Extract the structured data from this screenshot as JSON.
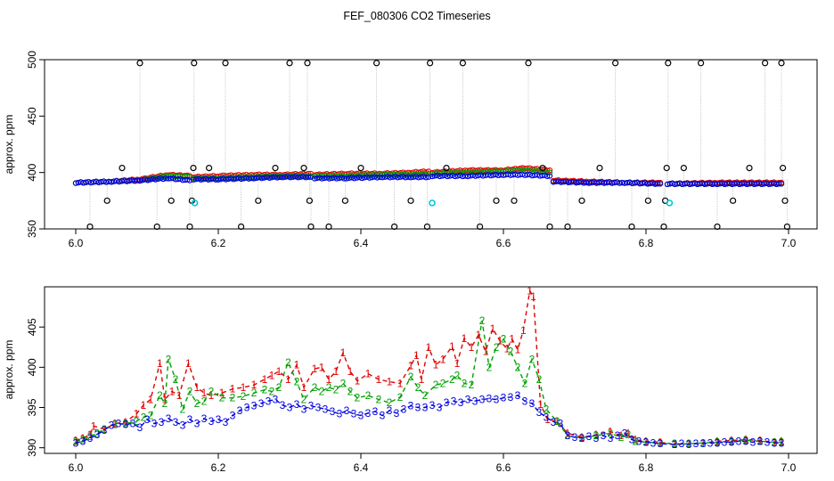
{
  "title": "FEF_080306  CO2 Timeseries",
  "colors": {
    "series1": "#e00000",
    "series2": "#00a000",
    "series3": "#0000e0",
    "outlier": "#000000",
    "flag": "#00c8d8",
    "connector": "#b0b0b0"
  },
  "chart_data": [
    {
      "type": "scatter",
      "panel": "top",
      "title": "FEF_080306  CO2 Timeseries",
      "xlabel": "",
      "ylabel": "approx. ppm",
      "xlim": [
        6.0,
        7.0
      ],
      "ylim": [
        350,
        500
      ],
      "x_ticks": [
        "6.0",
        "6.2",
        "6.4",
        "6.6",
        "6.8",
        "7.0"
      ],
      "y_ticks": [
        "350",
        "400",
        "450",
        "500"
      ],
      "baseline_segments": [
        {
          "x": [
            6.0,
            6.05,
            6.09,
            6.13,
            6.16
          ],
          "series3": [
            391,
            392,
            393,
            395,
            393
          ],
          "series1": [
            391,
            392,
            394,
            398,
            397
          ],
          "series2": [
            391,
            392,
            393,
            397,
            396
          ]
        },
        {
          "x": [
            6.165,
            6.2,
            6.25,
            6.29,
            6.33
          ],
          "series3": [
            394,
            394,
            395,
            396,
            396
          ],
          "series1": [
            396,
            397,
            398,
            398,
            399
          ],
          "series2": [
            395,
            395,
            396,
            397,
            397
          ]
        },
        {
          "x": [
            6.335,
            6.38,
            6.43,
            6.47,
            6.495
          ],
          "series3": [
            395,
            395,
            396,
            396,
            396
          ],
          "series1": [
            398,
            399,
            399,
            400,
            401
          ],
          "series2": [
            397,
            397,
            398,
            398,
            399
          ]
        },
        {
          "x": [
            6.5,
            6.55,
            6.6,
            6.63,
            6.665
          ],
          "series3": [
            397,
            397,
            398,
            398,
            397
          ],
          "series1": [
            400,
            402,
            402,
            404,
            402
          ],
          "series2": [
            399,
            400,
            401,
            402,
            400
          ]
        },
        {
          "x": [
            6.67,
            6.72,
            6.77,
            6.82
          ],
          "series3": [
            392,
            391,
            391,
            390
          ],
          "series1": [
            393,
            392,
            391,
            391
          ],
          "series2": [
            392,
            391,
            391,
            390
          ]
        },
        {
          "x": [
            6.83,
            6.9,
            6.99
          ],
          "series3": [
            390,
            390,
            390
          ],
          "series1": [
            390,
            391,
            391
          ],
          "series2": [
            390,
            390,
            390
          ]
        }
      ],
      "outliers": [
        {
          "x": 6.02,
          "y": 352
        },
        {
          "x": 6.044,
          "y": 375
        },
        {
          "x": 6.065,
          "y": 404
        },
        {
          "x": 6.09,
          "y": 497
        },
        {
          "x": 6.114,
          "y": 352
        },
        {
          "x": 6.134,
          "y": 375
        },
        {
          "x": 6.16,
          "y": 352
        },
        {
          "x": 6.163,
          "y": 375
        },
        {
          "x": 6.165,
          "y": 404
        },
        {
          "x": 6.166,
          "y": 497
        },
        {
          "x": 6.187,
          "y": 404
        },
        {
          "x": 6.21,
          "y": 497
        },
        {
          "x": 6.232,
          "y": 352
        },
        {
          "x": 6.256,
          "y": 375
        },
        {
          "x": 6.28,
          "y": 404
        },
        {
          "x": 6.3,
          "y": 497
        },
        {
          "x": 6.32,
          "y": 404
        },
        {
          "x": 6.325,
          "y": 497
        },
        {
          "x": 6.328,
          "y": 375
        },
        {
          "x": 6.33,
          "y": 352
        },
        {
          "x": 6.355,
          "y": 352
        },
        {
          "x": 6.378,
          "y": 375
        },
        {
          "x": 6.4,
          "y": 404
        },
        {
          "x": 6.422,
          "y": 497
        },
        {
          "x": 6.447,
          "y": 352
        },
        {
          "x": 6.47,
          "y": 375
        },
        {
          "x": 6.493,
          "y": 352
        },
        {
          "x": 6.497,
          "y": 497
        },
        {
          "x": 6.52,
          "y": 404
        },
        {
          "x": 6.543,
          "y": 497
        },
        {
          "x": 6.567,
          "y": 352
        },
        {
          "x": 6.59,
          "y": 375
        },
        {
          "x": 6.615,
          "y": 375
        },
        {
          "x": 6.635,
          "y": 497
        },
        {
          "x": 6.655,
          "y": 404
        },
        {
          "x": 6.665,
          "y": 352
        },
        {
          "x": 6.69,
          "y": 352
        },
        {
          "x": 6.71,
          "y": 375
        },
        {
          "x": 6.735,
          "y": 404
        },
        {
          "x": 6.757,
          "y": 497
        },
        {
          "x": 6.78,
          "y": 352
        },
        {
          "x": 6.803,
          "y": 375
        },
        {
          "x": 6.825,
          "y": 352
        },
        {
          "x": 6.827,
          "y": 375
        },
        {
          "x": 6.829,
          "y": 404
        },
        {
          "x": 6.831,
          "y": 497
        },
        {
          "x": 6.853,
          "y": 404
        },
        {
          "x": 6.877,
          "y": 497
        },
        {
          "x": 6.9,
          "y": 352
        },
        {
          "x": 6.922,
          "y": 375
        },
        {
          "x": 6.945,
          "y": 404
        },
        {
          "x": 6.967,
          "y": 497
        },
        {
          "x": 6.99,
          "y": 497
        },
        {
          "x": 6.992,
          "y": 404
        },
        {
          "x": 6.995,
          "y": 375
        },
        {
          "x": 6.998,
          "y": 352
        }
      ],
      "flagged": [
        {
          "x": 6.167,
          "y": 373
        },
        {
          "x": 6.5,
          "y": 373
        },
        {
          "x": 6.833,
          "y": 373
        }
      ]
    },
    {
      "type": "line",
      "panel": "bottom",
      "xlabel": "",
      "ylabel": "approx. ppm",
      "xlim": [
        6.0,
        7.0
      ],
      "ylim": [
        389.3,
        410.0
      ],
      "x_ticks": [
        "6.0",
        "6.2",
        "6.4",
        "6.6",
        "6.8",
        "7.0"
      ],
      "y_ticks": [
        "390",
        "395",
        "400",
        "405"
      ],
      "series": [
        {
          "name": "1",
          "label": "1",
          "color_key": "series1",
          "x": [
            6.0,
            6.01,
            6.02,
            6.025,
            6.04,
            6.055,
            6.07,
            6.085,
            6.095,
            6.105,
            6.118,
            6.125,
            6.135,
            6.145,
            6.158,
            6.17,
            6.18,
            6.19,
            6.205,
            6.22,
            6.235,
            6.25,
            6.265,
            6.275,
            6.285,
            6.298,
            6.31,
            6.32,
            6.335,
            6.345,
            6.355,
            6.365,
            6.375,
            6.385,
            6.395,
            6.41,
            6.425,
            6.44,
            6.455,
            6.47,
            6.478,
            6.485,
            6.495,
            6.505,
            6.515,
            6.528,
            6.535,
            6.545,
            6.555,
            6.565,
            6.575,
            6.585,
            6.595,
            6.605,
            6.612,
            6.62,
            6.628,
            6.637,
            6.642,
            6.652,
            6.662,
            6.675,
            6.69,
            6.71,
            6.73,
            6.75,
            6.765,
            6.775,
            6.785,
            6.8,
            6.82,
            6.84,
            6.86,
            6.88,
            6.9,
            6.92,
            6.94,
            6.96,
            6.98,
            6.99
          ],
          "values": [
            390.9,
            391.2,
            391.6,
            392.7,
            392.3,
            393.0,
            393.2,
            394.2,
            395.3,
            396.0,
            400.5,
            396.0,
            397.0,
            396.5,
            400.5,
            397.5,
            396.8,
            396.5,
            396.8,
            397.3,
            397.5,
            397.8,
            398.5,
            399.0,
            399.5,
            398.5,
            400.3,
            397.5,
            399.8,
            400.0,
            398.5,
            399.5,
            401.8,
            399.5,
            398.3,
            399.2,
            398.5,
            398.2,
            398.0,
            400.2,
            401.5,
            398.5,
            402.5,
            400.3,
            401.0,
            402.6,
            400.5,
            403.6,
            402.5,
            404.0,
            402.0,
            404.8,
            403.3,
            402.3,
            403.5,
            402.2,
            404.6,
            409.5,
            408.8,
            395.4,
            393.5,
            393.3,
            391.8,
            391.3,
            391.6,
            392.0,
            391.5,
            391.8,
            391.0,
            390.8,
            390.7,
            390.4,
            390.5,
            390.6,
            390.8,
            390.9,
            391.0,
            390.9,
            390.7,
            390.8
          ]
        },
        {
          "name": "2",
          "label": "2",
          "color_key": "series2",
          "x": [
            6.0,
            6.01,
            6.02,
            6.03,
            6.04,
            6.055,
            6.07,
            6.085,
            6.095,
            6.105,
            6.118,
            6.125,
            6.13,
            6.14,
            6.15,
            6.16,
            6.17,
            6.18,
            6.19,
            6.205,
            6.22,
            6.235,
            6.25,
            6.265,
            6.275,
            6.285,
            6.298,
            6.31,
            6.32,
            6.335,
            6.345,
            6.355,
            6.365,
            6.375,
            6.385,
            6.395,
            6.41,
            6.425,
            6.44,
            6.455,
            6.47,
            6.48,
            6.49,
            6.505,
            6.515,
            6.528,
            6.535,
            6.545,
            6.555,
            6.57,
            6.58,
            6.59,
            6.6,
            6.61,
            6.62,
            6.63,
            6.64,
            6.65,
            6.66,
            6.675,
            6.69,
            6.71,
            6.73,
            6.75,
            6.765,
            6.775,
            6.785,
            6.8,
            6.82,
            6.84,
            6.86,
            6.88,
            6.9,
            6.92,
            6.94,
            6.96,
            6.98,
            6.99
          ],
          "values": [
            390.8,
            391.0,
            391.4,
            391.8,
            392.3,
            392.9,
            393.0,
            393.3,
            393.8,
            394.0,
            396.5,
            395.5,
            401.0,
            398.5,
            394.8,
            397.0,
            395.5,
            395.8,
            397.0,
            396.2,
            396.2,
            396.4,
            396.8,
            397.2,
            397.0,
            397.5,
            400.6,
            398.2,
            396.0,
            397.5,
            397.0,
            397.5,
            397.2,
            398.0,
            397.0,
            396.2,
            396.5,
            396.0,
            395.6,
            396.3,
            398.8,
            397.5,
            396.5,
            397.8,
            398.0,
            398.5,
            399.0,
            398.0,
            397.8,
            405.8,
            400.0,
            402.5,
            403.5,
            402.0,
            400.0,
            398.0,
            401.0,
            398.5,
            394.8,
            393.3,
            391.5,
            391.2,
            391.5,
            391.8,
            391.3,
            391.6,
            390.8,
            390.7,
            390.6,
            390.5,
            390.5,
            390.6,
            390.7,
            390.8,
            390.9,
            390.8,
            390.7,
            390.7
          ]
        },
        {
          "name": "3",
          "label": "3",
          "color_key": "series3",
          "x": [
            6.0,
            6.01,
            6.02,
            6.03,
            6.04,
            6.05,
            6.06,
            6.07,
            6.08,
            6.09,
            6.1,
            6.11,
            6.12,
            6.13,
            6.14,
            6.15,
            6.16,
            6.17,
            6.18,
            6.19,
            6.2,
            6.21,
            6.22,
            6.23,
            6.24,
            6.25,
            6.26,
            6.27,
            6.28,
            6.29,
            6.3,
            6.31,
            6.32,
            6.33,
            6.34,
            6.35,
            6.36,
            6.37,
            6.38,
            6.39,
            6.4,
            6.41,
            6.42,
            6.43,
            6.44,
            6.45,
            6.46,
            6.47,
            6.48,
            6.49,
            6.5,
            6.51,
            6.52,
            6.53,
            6.54,
            6.55,
            6.56,
            6.57,
            6.58,
            6.59,
            6.6,
            6.61,
            6.62,
            6.63,
            6.64,
            6.65,
            6.66,
            6.67,
            6.68,
            6.69,
            6.7,
            6.71,
            6.72,
            6.73,
            6.74,
            6.75,
            6.76,
            6.77,
            6.78,
            6.79,
            6.8,
            6.81,
            6.82,
            6.84,
            6.85,
            6.86,
            6.87,
            6.88,
            6.89,
            6.9,
            6.91,
            6.92,
            6.93,
            6.94,
            6.95,
            6.96,
            6.97,
            6.98,
            6.99
          ],
          "values": [
            390.6,
            390.8,
            391.2,
            391.6,
            392.2,
            392.8,
            393.0,
            392.9,
            393.0,
            392.5,
            393.5,
            393.0,
            393.2,
            393.6,
            393.2,
            392.8,
            393.5,
            393.0,
            393.6,
            393.3,
            393.5,
            393.2,
            394.0,
            394.6,
            395.0,
            395.2,
            395.5,
            395.8,
            396.0,
            395.3,
            395.0,
            395.4,
            394.8,
            395.2,
            395.0,
            394.8,
            394.5,
            394.2,
            394.6,
            394.2,
            394.0,
            394.3,
            394.5,
            394.0,
            394.6,
            394.3,
            394.8,
            395.2,
            395.0,
            395.0,
            395.3,
            395.0,
            395.6,
            395.8,
            395.6,
            396.0,
            395.8,
            396.0,
            396.1,
            396.0,
            396.2,
            396.3,
            396.5,
            395.8,
            395.5,
            394.4,
            393.8,
            393.2,
            393.0,
            391.5,
            391.3,
            391.2,
            391.4,
            391.2,
            391.5,
            391.2,
            391.5,
            391.8,
            391.0,
            390.8,
            390.7,
            390.6,
            390.5,
            390.4,
            390.5,
            390.4,
            390.5,
            390.5,
            390.6,
            390.6,
            390.7,
            390.7,
            390.8,
            390.8,
            390.7,
            390.8,
            390.7,
            390.6,
            390.6
          ]
        }
      ]
    }
  ]
}
